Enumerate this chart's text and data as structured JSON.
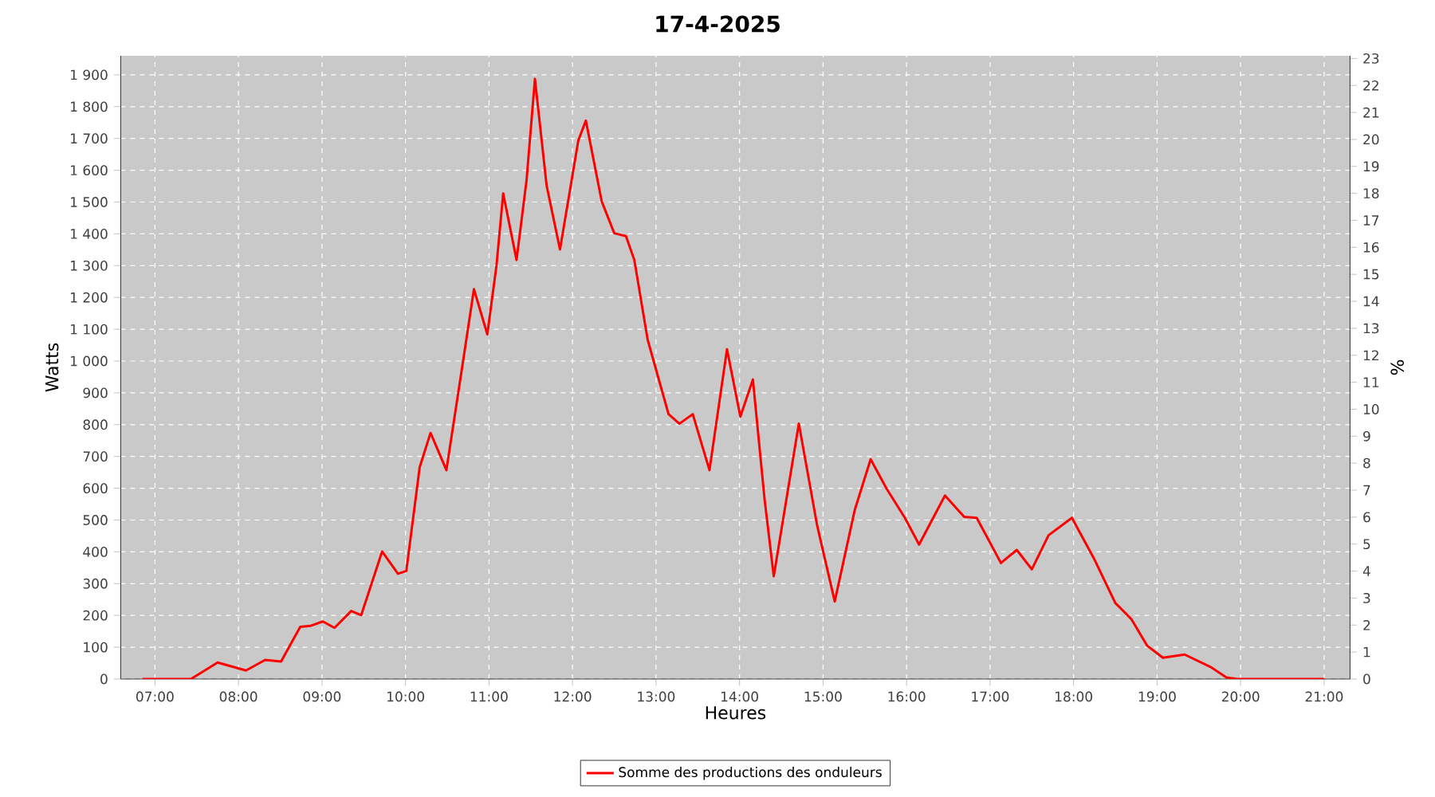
{
  "chart_data": {
    "type": "line",
    "title": "17-4-2025",
    "xlabel": "Heures",
    "ylabel": "Watts",
    "y2label": "%",
    "x": [
      6.85,
      7.43,
      7.75,
      8.09,
      8.32,
      8.51,
      8.74,
      8.86,
      9.01,
      9.15,
      9.35,
      9.47,
      9.72,
      9.91,
      10.01,
      10.17,
      10.3,
      10.49,
      10.68,
      10.82,
      10.98,
      11.09,
      11.17,
      11.33,
      11.45,
      11.55,
      11.69,
      11.85,
      12.07,
      12.16,
      12.35,
      12.5,
      12.64,
      12.74,
      12.9,
      13.15,
      13.28,
      13.44,
      13.64,
      13.85,
      14.01,
      14.16,
      14.3,
      14.41,
      14.71,
      14.93,
      15.14,
      15.38,
      15.57,
      15.76,
      15.98,
      16.15,
      16.46,
      16.69,
      16.84,
      17.13,
      17.32,
      17.5,
      17.7,
      17.98,
      18.24,
      18.5,
      18.69,
      18.88,
      19.07,
      19.33,
      19.64,
      19.83,
      19.96,
      21.0
    ],
    "series": [
      {
        "name": "Somme des productions des onduleurs",
        "color": "#ff0000",
        "values": [
          0,
          0,
          52,
          27,
          60,
          55,
          164,
          167,
          181,
          161,
          214,
          201,
          401,
          331,
          340,
          666,
          774,
          657,
          983,
          1226,
          1084,
          1301,
          1527,
          1318,
          1569,
          1887,
          1552,
          1351,
          1694,
          1756,
          1502,
          1402,
          1393,
          1318,
          1067,
          833,
          803,
          833,
          657,
          1037,
          825,
          942,
          565,
          323,
          803,
          482,
          244,
          532,
          691,
          599,
          507,
          423,
          577,
          510,
          507,
          365,
          406,
          345,
          452,
          507,
          381,
          239,
          189,
          105,
          67,
          77,
          38,
          5,
          0,
          0
        ]
      }
    ],
    "xlim": [
      6.59,
      21.31
    ],
    "xticks": [
      {
        "value": 7,
        "label": "07:00"
      },
      {
        "value": 8,
        "label": "08:00"
      },
      {
        "value": 9,
        "label": "09:00"
      },
      {
        "value": 10,
        "label": "10:00"
      },
      {
        "value": 11,
        "label": "11:00"
      },
      {
        "value": 12,
        "label": "12:00"
      },
      {
        "value": 13,
        "label": "13:00"
      },
      {
        "value": 14,
        "label": "14:00"
      },
      {
        "value": 15,
        "label": "15:00"
      },
      {
        "value": 16,
        "label": "16:00"
      },
      {
        "value": 17,
        "label": "17:00"
      },
      {
        "value": 18,
        "label": "18:00"
      },
      {
        "value": 19,
        "label": "19:00"
      },
      {
        "value": 20,
        "label": "20:00"
      },
      {
        "value": 21,
        "label": "21:00"
      }
    ],
    "ylim": [
      0,
      1960
    ],
    "yticks": [
      0,
      100,
      200,
      300,
      400,
      500,
      600,
      700,
      800,
      900,
      {
        "value": 1000,
        "label": "1 000"
      },
      {
        "value": 1100,
        "label": "1 100"
      },
      {
        "value": 1200,
        "label": "1 200"
      },
      {
        "value": 1300,
        "label": "1 300"
      },
      {
        "value": 1400,
        "label": "1 400"
      },
      {
        "value": 1500,
        "label": "1 500"
      },
      {
        "value": 1600,
        "label": "1 600"
      },
      {
        "value": 1700,
        "label": "1 700"
      },
      {
        "value": 1800,
        "label": "1 800"
      },
      {
        "value": 1900,
        "label": "1 900"
      }
    ],
    "y2lim": [
      0,
      23.1
    ],
    "y2ticks": [
      0,
      1,
      2,
      3,
      4,
      5,
      6,
      7,
      8,
      9,
      10,
      11,
      12,
      13,
      14,
      15,
      16,
      17,
      18,
      19,
      20,
      21,
      22,
      23
    ],
    "grid": true,
    "legend": "bottom",
    "marker": "none",
    "line_style": "solid"
  }
}
